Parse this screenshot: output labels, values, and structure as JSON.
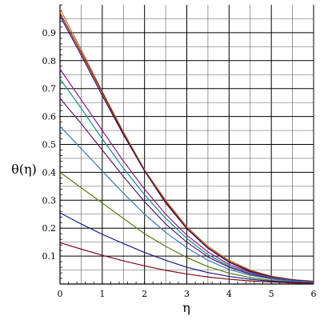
{
  "chart_data": {
    "type": "line",
    "xlabel": "η",
    "ylabel": "θ(η)",
    "xlim": [
      0,
      6
    ],
    "ylim": [
      0,
      1
    ],
    "grid": true,
    "xticks": [
      {
        "value": 0,
        "label": "0"
      },
      {
        "value": 1,
        "label": "1"
      },
      {
        "value": 2,
        "label": "2"
      },
      {
        "value": 3,
        "label": "3"
      },
      {
        "value": 4,
        "label": "4"
      },
      {
        "value": 5,
        "label": "5"
      },
      {
        "value": 6,
        "label": "6"
      }
    ],
    "yticks": [
      {
        "value": 0.1,
        "label": "0.1"
      },
      {
        "value": 0.2,
        "label": "0.2"
      },
      {
        "value": 0.3,
        "label": "0.3"
      },
      {
        "value": 0.4,
        "label": "0.4"
      },
      {
        "value": 0.5,
        "label": "0.5"
      },
      {
        "value": 0.6,
        "label": "0.6"
      },
      {
        "value": 0.7,
        "label": "0.7"
      },
      {
        "value": 0.8,
        "label": "0.8"
      },
      {
        "value": 0.9,
        "label": "0.9"
      }
    ],
    "x": [
      0,
      0.5,
      1,
      1.5,
      2,
      2.5,
      3,
      3.5,
      4,
      4.5,
      5,
      5.5,
      6
    ],
    "series": [
      {
        "color": "#d2691e",
        "values": [
          0.985,
          0.84,
          0.69,
          0.545,
          0.41,
          0.3,
          0.205,
          0.135,
          0.085,
          0.05,
          0.028,
          0.016,
          0.01
        ]
      },
      {
        "color": "#8b1a1a",
        "values": [
          0.97,
          0.83,
          0.685,
          0.54,
          0.405,
          0.295,
          0.2,
          0.13,
          0.08,
          0.047,
          0.026,
          0.015,
          0.009
        ]
      },
      {
        "color": "#1a1a6e",
        "values": [
          0.96,
          0.82,
          0.675,
          0.535,
          0.405,
          0.29,
          0.198,
          0.128,
          0.078,
          0.045,
          0.025,
          0.014,
          0.009
        ]
      },
      {
        "color": "#8b1a8b",
        "values": [
          0.77,
          0.66,
          0.55,
          0.44,
          0.34,
          0.25,
          0.175,
          0.115,
          0.07,
          0.042,
          0.024,
          0.013,
          0.008
        ]
      },
      {
        "color": "#1a8b8b",
        "values": [
          0.735,
          0.63,
          0.52,
          0.415,
          0.32,
          0.235,
          0.163,
          0.105,
          0.064,
          0.038,
          0.022,
          0.012,
          0.007
        ]
      },
      {
        "color": "#5a1a6e",
        "values": [
          0.665,
          0.575,
          0.48,
          0.385,
          0.295,
          0.215,
          0.15,
          0.097,
          0.06,
          0.035,
          0.02,
          0.011,
          0.006
        ]
      },
      {
        "color": "#3a7ab0",
        "values": [
          0.565,
          0.485,
          0.405,
          0.325,
          0.25,
          0.185,
          0.13,
          0.085,
          0.052,
          0.031,
          0.018,
          0.01,
          0.006
        ]
      },
      {
        "color": "#5a7a10",
        "values": [
          0.4,
          0.345,
          0.29,
          0.235,
          0.18,
          0.135,
          0.095,
          0.062,
          0.039,
          0.023,
          0.013,
          0.007,
          0.004
        ]
      },
      {
        "color": "#1a1a8b",
        "values": [
          0.255,
          0.215,
          0.178,
          0.145,
          0.113,
          0.085,
          0.06,
          0.041,
          0.027,
          0.017,
          0.01,
          0.006,
          0.003
        ]
      },
      {
        "color": "#7a0a1a",
        "values": [
          0.148,
          0.125,
          0.103,
          0.083,
          0.065,
          0.049,
          0.036,
          0.025,
          0.017,
          0.011,
          0.007,
          0.004,
          0.002
        ]
      }
    ]
  }
}
